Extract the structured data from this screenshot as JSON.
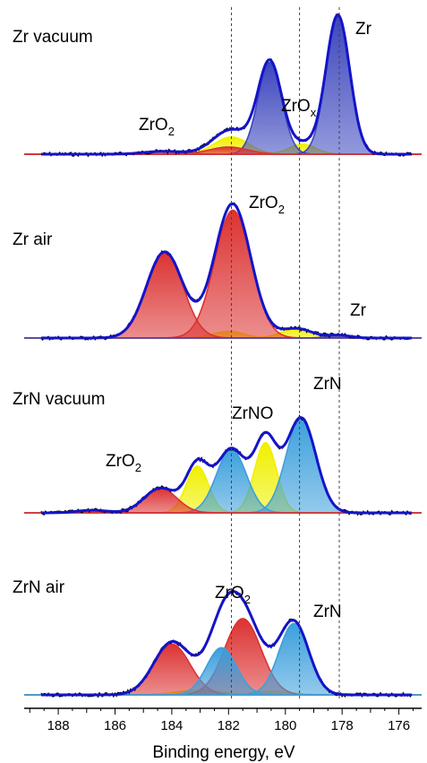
{
  "chart_data": {
    "type": "area",
    "xlabel": "Binding energy, eV",
    "xlim": [
      189.2,
      175.2
    ],
    "x_ticks": [
      188,
      186,
      184,
      182,
      180,
      178,
      176
    ],
    "reference_lines": [
      181.9,
      179.5,
      178.1
    ],
    "colors": {
      "envelope": "#1414c8",
      "raw": "#000000",
      "Zr": "#3c46be",
      "ZrO2": "#dc3232",
      "ZrOx": "#f0f000",
      "ZrNO": "#f0f000",
      "ZrN": "#3c9fdc"
    },
    "panels": [
      {
        "title": "Zr vacuum",
        "components": [
          {
            "name": "Zr",
            "center": 178.15,
            "height": 0.97,
            "width": 0.62
          },
          {
            "name": "Zr (2nd)",
            "center": 180.55,
            "height": 0.64,
            "width": 0.62
          },
          {
            "name": "ZrO2",
            "center": 182.0,
            "height": 0.05,
            "width": 1.0
          },
          {
            "name": "ZrO2 (2nd)",
            "center": 184.3,
            "height": 0.02,
            "width": 1.0
          },
          {
            "name": "ZrOx",
            "center": 179.4,
            "height": 0.07,
            "width": 0.7
          },
          {
            "name": "ZrOx (2nd)",
            "center": 181.9,
            "height": 0.12,
            "width": 0.9
          }
        ],
        "labels": [
          "Zr",
          "ZrO2",
          "ZrOx"
        ]
      },
      {
        "title": "Zr air",
        "components": [
          {
            "name": "ZrO2",
            "center": 181.85,
            "height": 0.95,
            "width": 0.95
          },
          {
            "name": "ZrO2 (2nd)",
            "center": 184.25,
            "height": 0.64,
            "width": 0.95
          },
          {
            "name": "yellow-1",
            "center": 179.6,
            "height": 0.07,
            "width": 0.8
          },
          {
            "name": "yellow-2",
            "center": 182.0,
            "height": 0.05,
            "width": 0.8
          },
          {
            "name": "Zr",
            "center": 178.1,
            "height": 0.02,
            "width": 0.6
          }
        ],
        "labels": [
          "ZrO2",
          "Zr"
        ]
      },
      {
        "title": "ZrN vacuum",
        "components": [
          {
            "name": "ZrN",
            "center": 179.45,
            "height": 0.73,
            "width": 0.78
          },
          {
            "name": "ZrN (2nd)",
            "center": 181.9,
            "height": 0.49,
            "width": 0.78
          },
          {
            "name": "ZrNO",
            "center": 180.7,
            "height": 0.54,
            "width": 0.58
          },
          {
            "name": "ZrNO (2nd)",
            "center": 183.1,
            "height": 0.36,
            "width": 0.58
          },
          {
            "name": "ZrO2",
            "center": 184.4,
            "height": 0.19,
            "width": 0.85
          },
          {
            "name": "ZrO2 (2nd)",
            "center": 186.8,
            "height": 0.02,
            "width": 0.8
          }
        ],
        "labels": [
          "ZrO2",
          "ZrNO",
          "ZrN"
        ]
      },
      {
        "title": "ZrN air",
        "components": [
          {
            "name": "ZrO2",
            "center": 181.5,
            "height": 0.63,
            "width": 0.95
          },
          {
            "name": "ZrO2 (2nd)",
            "center": 184.0,
            "height": 0.42,
            "width": 0.95
          },
          {
            "name": "ZrN",
            "center": 179.7,
            "height": 0.59,
            "width": 0.78
          },
          {
            "name": "ZrN (2nd)",
            "center": 182.25,
            "height": 0.39,
            "width": 0.78
          },
          {
            "name": "yellow-1",
            "center": 183.0,
            "height": 0.04,
            "width": 1.2
          },
          {
            "name": "yellow-2",
            "center": 180.5,
            "height": 0.03,
            "width": 1.0
          }
        ],
        "labels": [
          "ZrO2",
          "ZrN"
        ]
      }
    ]
  },
  "text": {
    "xlabel": "Binding energy, eV",
    "ticks": [
      "188",
      "186",
      "184",
      "182",
      "180",
      "178",
      "176"
    ],
    "panel1": {
      "title": "Zr vacuum",
      "zr": "Zr",
      "zro2_main": "ZrO",
      "zro2_sub": "2",
      "zrox_main": "ZrO",
      "zrox_sub": "x"
    },
    "panel2": {
      "title": "Zr air",
      "zro2_main": "ZrO",
      "zro2_sub": "2",
      "zr": "Zr"
    },
    "panel3": {
      "title": "ZrN vacuum",
      "zro2_main": "ZrO",
      "zro2_sub": "2",
      "zrno": "ZrNO",
      "zrn": "ZrN"
    },
    "panel4": {
      "title": "ZrN air",
      "zro2_main": "ZrO",
      "zro2_sub": "2",
      "zrn": "ZrN"
    }
  }
}
